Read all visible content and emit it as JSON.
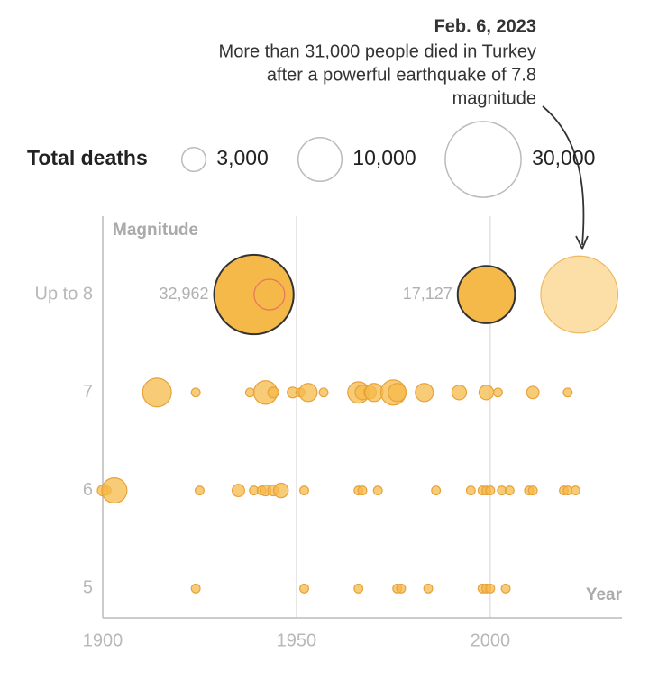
{
  "chart_data": {
    "type": "bubble",
    "annotation": {
      "title": "Feb. 6, 2023",
      "lines": [
        "More than 31,000 people died in Turkey",
        "after a powerful earthquake of 7.8",
        "magnitude"
      ]
    },
    "size_legend": {
      "title": "Total deaths",
      "sizes": [
        {
          "value": 3000,
          "label": "3,000"
        },
        {
          "value": 10000,
          "label": "10,000"
        },
        {
          "value": 30000,
          "label": "30,000"
        }
      ]
    },
    "y_label": "Magnitude",
    "x_label": "Year",
    "xlim": [
      1900,
      2034
    ],
    "xticks": [
      1900,
      1950,
      2000
    ],
    "ylim": [
      4.7,
      8.8
    ],
    "yticks": [
      5,
      6,
      7,
      {
        "value": 8,
        "label": "Up to 8"
      }
    ],
    "grid": true,
    "series": [
      {
        "color": "#f5b94a",
        "stroke": "#e8a23a",
        "x": [
          1914,
          1924,
          1938,
          1942,
          1944,
          1949,
          1951,
          1953,
          1957,
          1966,
          1967,
          1969,
          1970,
          1975,
          1976,
          1983,
          1992,
          1999,
          2002,
          2011,
          2020,
          1900,
          1901,
          1903,
          1925,
          1935,
          1939,
          1941,
          1942,
          1944,
          1946,
          1952,
          1966,
          1967,
          1971,
          1986,
          1995,
          1998,
          1999,
          2000,
          2003,
          2005,
          2010,
          2011,
          2019,
          2020,
          2022,
          1924,
          1952,
          1966,
          1976,
          1977,
          1984,
          1998,
          1999,
          2000,
          2004
        ],
        "y": [
          7,
          7,
          7,
          7,
          7,
          7,
          7,
          7,
          7,
          7,
          7,
          7,
          7,
          7,
          7,
          7,
          7,
          7,
          7,
          7,
          7,
          6,
          6,
          6,
          6,
          6,
          6,
          6,
          6,
          6,
          6,
          6,
          6,
          6,
          6,
          6,
          6,
          6,
          6,
          6,
          6,
          6,
          6,
          6,
          6,
          6,
          6,
          5,
          5,
          5,
          5,
          5,
          5,
          5,
          5,
          5,
          5
        ],
        "sizes": [
          4300,
          400,
          400,
          2900,
          600,
          600,
          400,
          1700,
          400,
          2400,
          1100,
          800,
          1700,
          3300,
          1700,
          1700,
          1100,
          1100,
          400,
          800,
          400,
          600,
          400,
          3300,
          400,
          800,
          400,
          400,
          600,
          600,
          1100,
          400,
          400,
          400,
          400,
          400,
          400,
          400,
          400,
          400,
          400,
          400,
          400,
          400,
          400,
          400,
          400,
          400,
          400,
          400,
          400,
          400,
          400,
          400,
          400,
          400,
          400
        ]
      },
      {
        "color": "#f5b94a",
        "stroke": "#333333",
        "x": [
          1939,
          1999
        ],
        "y": [
          8,
          8
        ],
        "sizes": [
          32962,
          17127
        ],
        "value_labels": [
          "32,962",
          "17,127"
        ]
      },
      {
        "color": "none",
        "stroke": "#e8735a",
        "x": [
          1943
        ],
        "y": [
          8
        ],
        "sizes": [
          4900
        ]
      },
      {
        "color": "#fad48a",
        "stroke": "#f0b860",
        "x": [
          2023
        ],
        "y": [
          8
        ],
        "sizes": [
          31000
        ]
      }
    ]
  }
}
